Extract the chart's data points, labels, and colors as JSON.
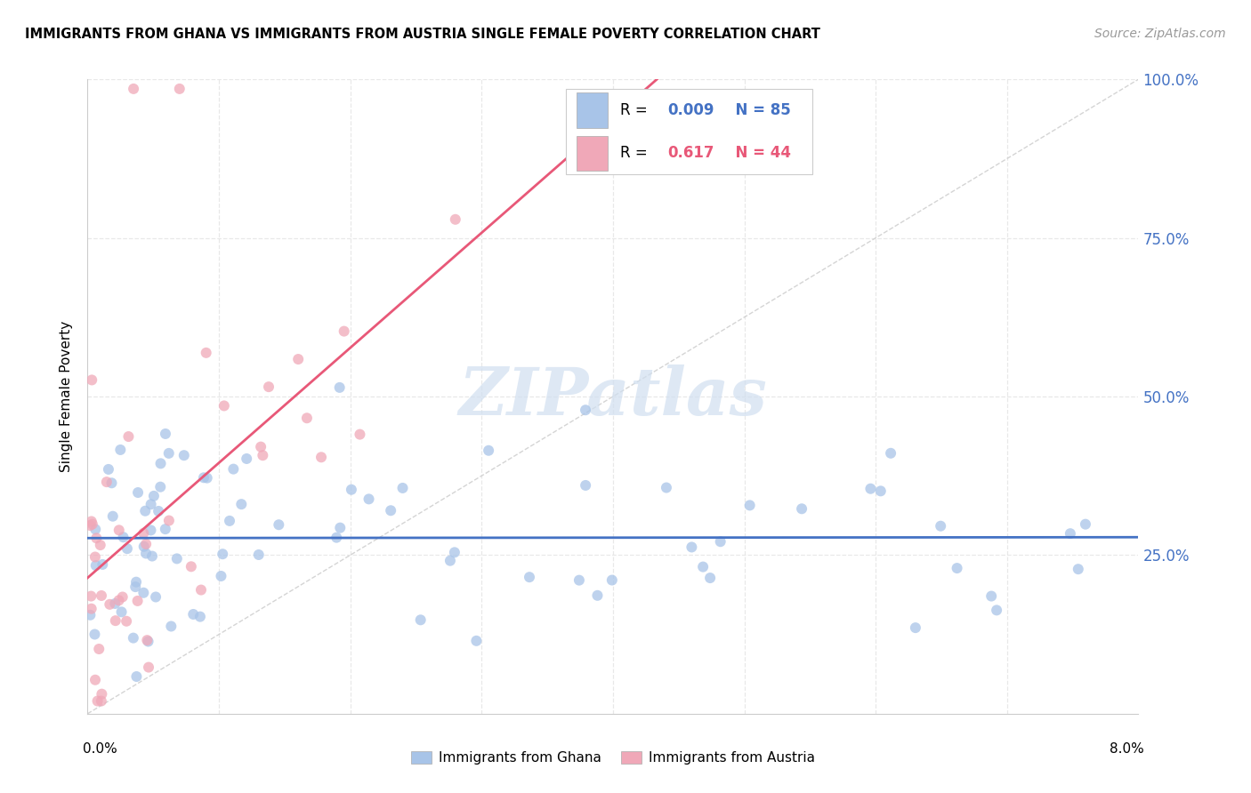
{
  "title": "IMMIGRANTS FROM GHANA VS IMMIGRANTS FROM AUSTRIA SINGLE FEMALE POVERTY CORRELATION CHART",
  "source": "Source: ZipAtlas.com",
  "ylabel": "Single Female Poverty",
  "ghana_R": 0.009,
  "ghana_N": 85,
  "austria_R": 0.617,
  "austria_N": 44,
  "ghana_color": "#a8c4e8",
  "austria_color": "#f0a8b8",
  "ghana_line_color": "#4472c4",
  "austria_line_color": "#e85878",
  "xlim": [
    0.0,
    0.08
  ],
  "ylim": [
    0.0,
    1.0
  ],
  "xtick_labels": [
    "0.0%",
    "8.0%"
  ],
  "ytick_positions": [
    0.0,
    0.25,
    0.5,
    0.75,
    1.0
  ],
  "ytick_labels": [
    "",
    "25.0%",
    "50.0%",
    "75.0%",
    "100.0%"
  ],
  "watermark_text": "ZIPatlas",
  "watermark_color": "#d0dff0",
  "grid_color": "#e8e8e8",
  "diag_color": "#d0d0d0"
}
